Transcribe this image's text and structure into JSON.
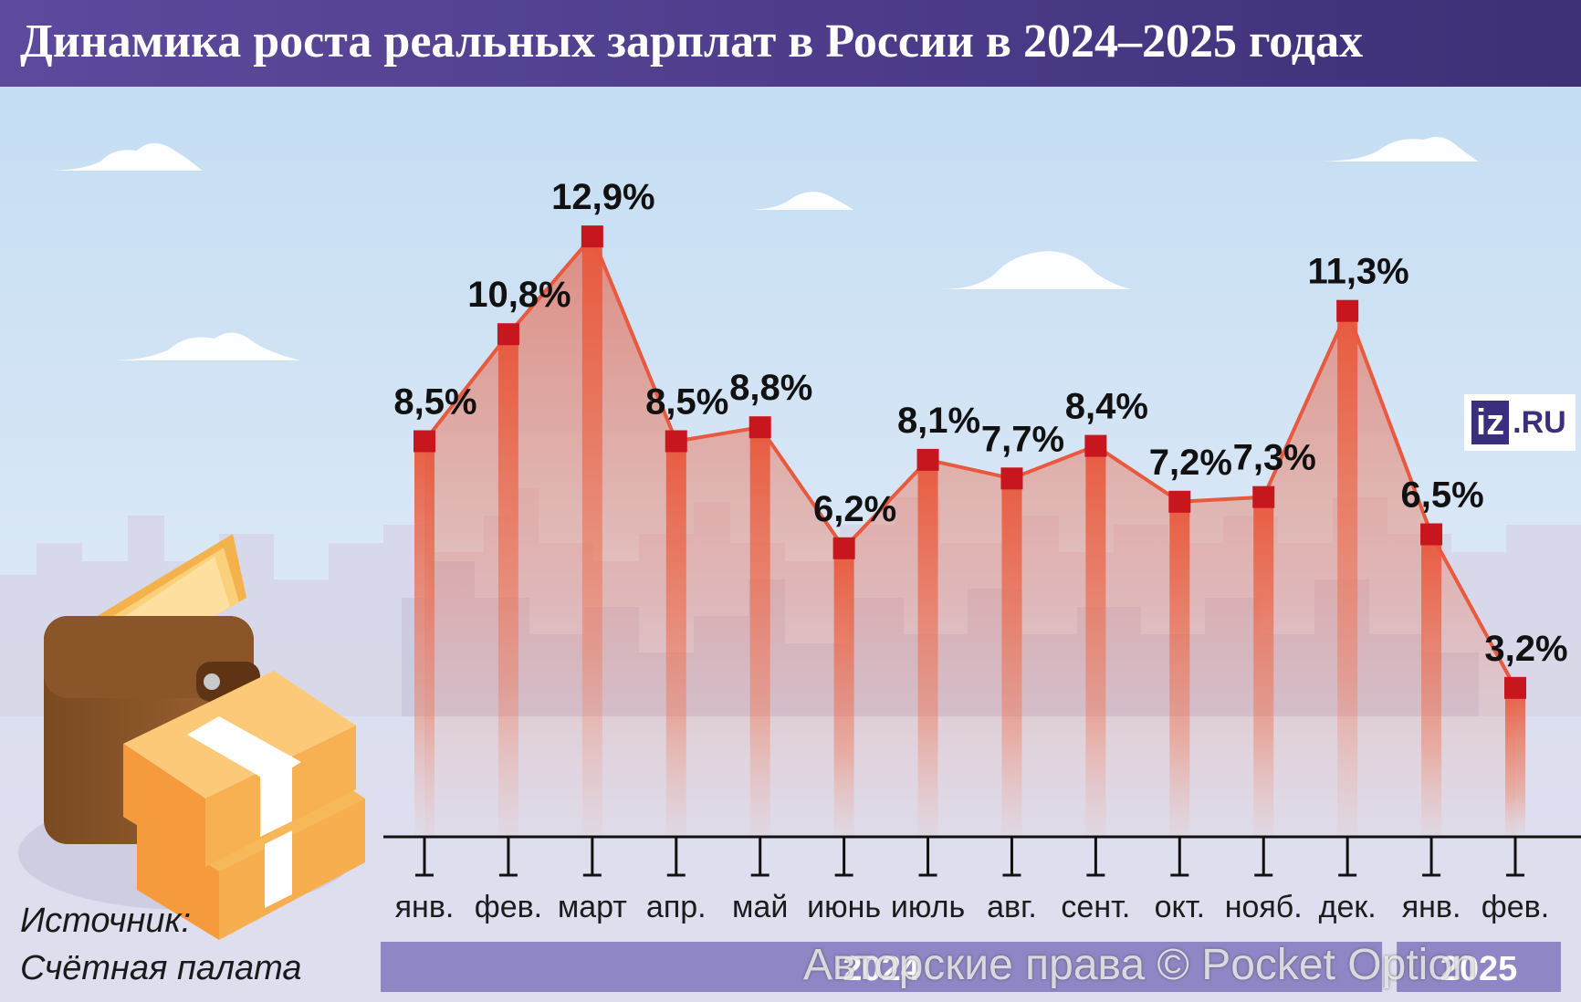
{
  "header": {
    "title": "Динамика роста реальных зарплат в России в 2024–2025 годах"
  },
  "logo": {
    "mark": "iz",
    "suffix": ".RU"
  },
  "source": {
    "line1": "Источник:",
    "line2": "Счётная палата"
  },
  "watermark": "Авторские права © Pocket Option",
  "colors": {
    "title_bg": "#4f3d8c",
    "line": "#e8593e",
    "marker": "#c8161e",
    "year_bar": "#8f86c6"
  },
  "chart_data": {
    "type": "line",
    "title": "Динамика роста реальных зарплат в России в 2024–2025 годах",
    "xlabel": "",
    "ylabel": "",
    "unit": "%",
    "ylim": [
      0,
      14
    ],
    "categories": [
      "янв.",
      "фев.",
      "март",
      "апр.",
      "май",
      "июнь",
      "июль",
      "авг.",
      "сент.",
      "окт.",
      "нояб.",
      "дек.",
      "янв.",
      "фев."
    ],
    "values": [
      8.5,
      10.8,
      12.9,
      8.5,
      8.8,
      6.2,
      8.1,
      7.7,
      8.4,
      7.2,
      7.3,
      11.3,
      6.5,
      3.2
    ],
    "labels": [
      "8,5%",
      "10,8%",
      "12,9%",
      "8,5%",
      "8,8%",
      "6,2%",
      "8,1%",
      "7,7%",
      "8,4%",
      "7,2%",
      "7,3%",
      "11,3%",
      "6,5%",
      "3,2%"
    ],
    "years": [
      {
        "label": "2024",
        "from": 0,
        "to": 11
      },
      {
        "label": "2025",
        "from": 12,
        "to": 13
      }
    ]
  }
}
